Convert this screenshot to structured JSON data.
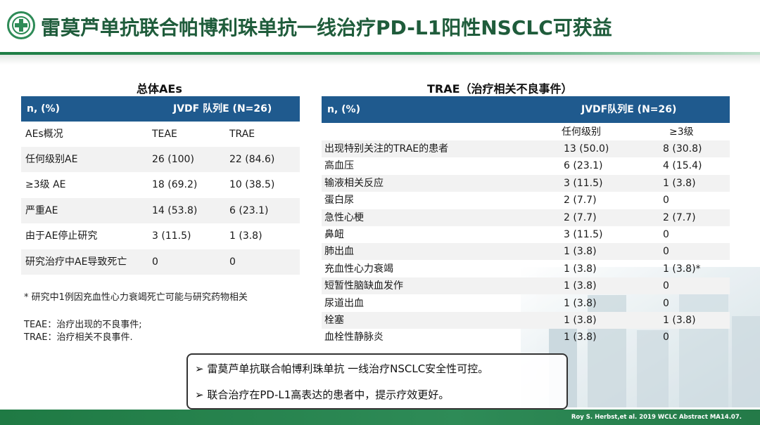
{
  "header": {
    "title": "雷莫芦单抗联合帕博利珠单抗一线治疗PD-L1阳性NSCLC可获益"
  },
  "left_table": {
    "title": "总体AEs",
    "col_label": "n, (%)",
    "group_label": "JVDF 队列E (N=26)",
    "rows": [
      {
        "label": "AEs概况",
        "teae": "TEAE",
        "trae": "TRAE"
      },
      {
        "label": "任何级别AE",
        "teae": "26 (100)",
        "trae": "22 (84.6)"
      },
      {
        "label": "≥3级 AE",
        "teae": "18 (69.2)",
        "trae": "10 (38.5)"
      },
      {
        "label": "严重AE",
        "teae": "14 (53.8)",
        "trae": "6 (23.1)"
      },
      {
        "label": "由于AE停止研究",
        "teae": "3 (11.5)",
        "trae": "1 (3.8)"
      },
      {
        "label": "研究治疗中AE导致死亡",
        "teae": "0",
        "trae": "0"
      }
    ]
  },
  "notes": {
    "death_note": "* 研究中1例因充血性心力衰竭死亡可能与研究药物相关",
    "teae_def": "TEAE：治疗出现的不良事件;",
    "trae_def": "TRAE：治疗相关不良事件."
  },
  "right_table": {
    "title": "TRAE（治疗相关不良事件）",
    "col_label": "n, (%)",
    "group_label": "JVDF队列E (N=26)",
    "sub_any": "任何级别",
    "sub_grade3": "≥3级",
    "rows": [
      {
        "label": "出现特别关注的TRAE的患者",
        "any": "13 (50.0)",
        "g3": "8 (30.8)"
      },
      {
        "label": "高血压",
        "any": "6 (23.1)",
        "g3": "4 (15.4)"
      },
      {
        "label": "输液相关反应",
        "any": "3 (11.5)",
        "g3": "1 (3.8)"
      },
      {
        "label": "蛋白尿",
        "any": "2 (7.7)",
        "g3": "0"
      },
      {
        "label": "急性心梗",
        "any": "2 (7.7)",
        "g3": "2 (7.7)"
      },
      {
        "label": "鼻衄",
        "any": "3 (11.5)",
        "g3": "0"
      },
      {
        "label": "肺出血",
        "any": "1 (3.8)",
        "g3": "0"
      },
      {
        "label": "充血性心力衰竭",
        "any": "1 (3.8)",
        "g3": "1 (3.8)*"
      },
      {
        "label": "短暂性脑缺血发作",
        "any": "1 (3.8)",
        "g3": "0"
      },
      {
        "label": "尿道出血",
        "any": "1 (3.8)",
        "g3": "0"
      },
      {
        "label": "栓塞",
        "any": "1 (3.8)",
        "g3": "1 (3.8)"
      },
      {
        "label": "血栓性静脉炎",
        "any": "1 (3.8)",
        "g3": "0"
      }
    ]
  },
  "callout": {
    "line1": "雷莫芦单抗联合帕博利珠单抗 一线治疗NSCLC安全性可控。",
    "line2": "联合治疗在PD-L1高表达的患者中，提示疗效更好。",
    "bullet": "➢"
  },
  "footer": {
    "citation": "Roy S. Herbst,et al. 2019 WCLC Abstract MA14.07."
  },
  "colors": {
    "title_green": "#1f5c3b",
    "table_header_blue": "#1f5a8e",
    "footer_green": "#2e8b57"
  }
}
